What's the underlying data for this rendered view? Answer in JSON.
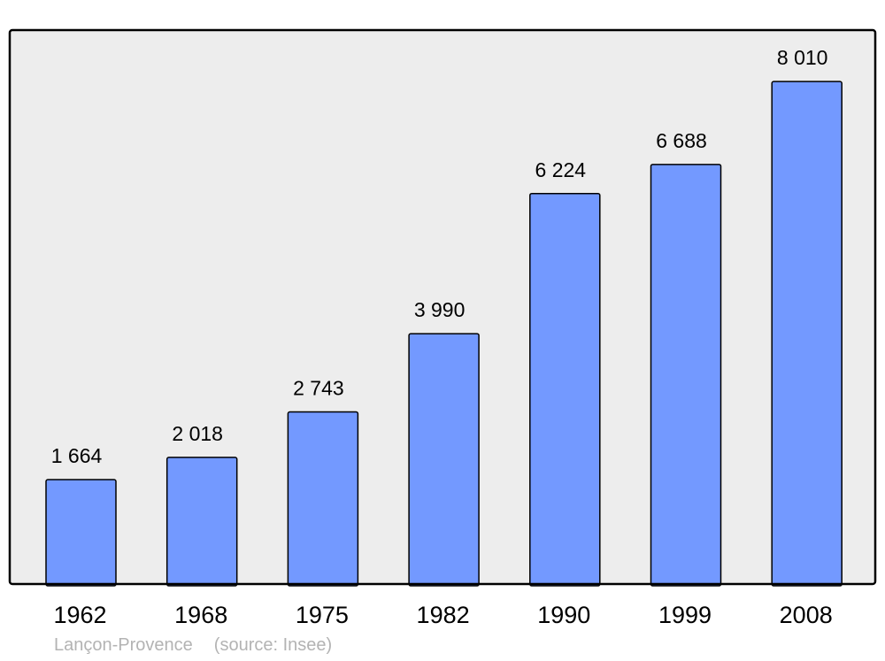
{
  "chart_data": {
    "type": "bar",
    "categories": [
      "1962",
      "1968",
      "1975",
      "1982",
      "1990",
      "1999",
      "2008"
    ],
    "values": [
      1664,
      2018,
      2743,
      3990,
      6224,
      6688,
      8010
    ],
    "value_labels": [
      "1 664",
      "2 018",
      "2 743",
      "3 990",
      "6 224",
      "6 688",
      "8 010"
    ],
    "title": "",
    "xlabel": "",
    "ylabel": "",
    "ylim": [
      0,
      8830
    ],
    "grid": false,
    "colors": {
      "bar": "#7399ff",
      "plot_background": "#ededed",
      "frame": "#000000"
    }
  },
  "footer": {
    "place": "Lançon-Provence",
    "source": "(source: Insee)"
  }
}
